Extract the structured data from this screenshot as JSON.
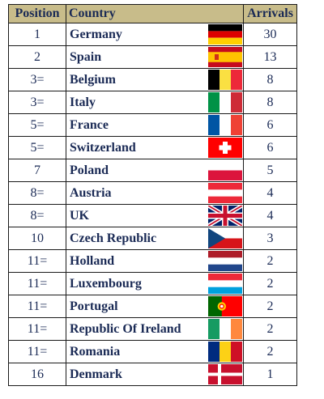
{
  "table": {
    "headers": {
      "position": "Position",
      "country": "Country",
      "arrivals": "Arrivals"
    },
    "rows": [
      {
        "position": "1",
        "country": "Germany",
        "arrivals": "30",
        "flag": "germany-flag-icon"
      },
      {
        "position": "2",
        "country": "Spain",
        "arrivals": "13",
        "flag": "spain-flag-icon"
      },
      {
        "position": "3=",
        "country": "Belgium",
        "arrivals": "8",
        "flag": "belgium-flag-icon"
      },
      {
        "position": "3=",
        "country": "Italy",
        "arrivals": "8",
        "flag": "italy-flag-icon"
      },
      {
        "position": "5=",
        "country": "France",
        "arrivals": "6",
        "flag": "france-flag-icon"
      },
      {
        "position": "5=",
        "country": "Switzerland",
        "arrivals": "6",
        "flag": "switzerland-flag-icon"
      },
      {
        "position": "7",
        "country": "Poland",
        "arrivals": "5",
        "flag": "poland-flag-icon"
      },
      {
        "position": "8=",
        "country": "Austria",
        "arrivals": "4",
        "flag": "austria-flag-icon"
      },
      {
        "position": "8=",
        "country": "UK",
        "arrivals": "4",
        "flag": "uk-flag-icon"
      },
      {
        "position": "10",
        "country": "Czech Republic",
        "arrivals": "3",
        "flag": "czech-flag-icon"
      },
      {
        "position": "11=",
        "country": "Holland",
        "arrivals": "2",
        "flag": "netherlands-flag-icon"
      },
      {
        "position": "11=",
        "country": "Luxembourg",
        "arrivals": "2",
        "flag": "luxembourg-flag-icon"
      },
      {
        "position": "11=",
        "country": "Portugal",
        "arrivals": "2",
        "flag": "portugal-flag-icon"
      },
      {
        "position": "11=",
        "country": "Republic Of Ireland",
        "arrivals": "2",
        "flag": "ireland-flag-icon"
      },
      {
        "position": "11=",
        "country": "Romania",
        "arrivals": "2",
        "flag": "romania-flag-icon"
      },
      {
        "position": "16",
        "country": "Denmark",
        "arrivals": "1",
        "flag": "denmark-flag-icon"
      }
    ]
  },
  "colors": {
    "header_bg": "#c8bc8a",
    "text": "#1a2a55",
    "border": "#1a1a1a"
  }
}
